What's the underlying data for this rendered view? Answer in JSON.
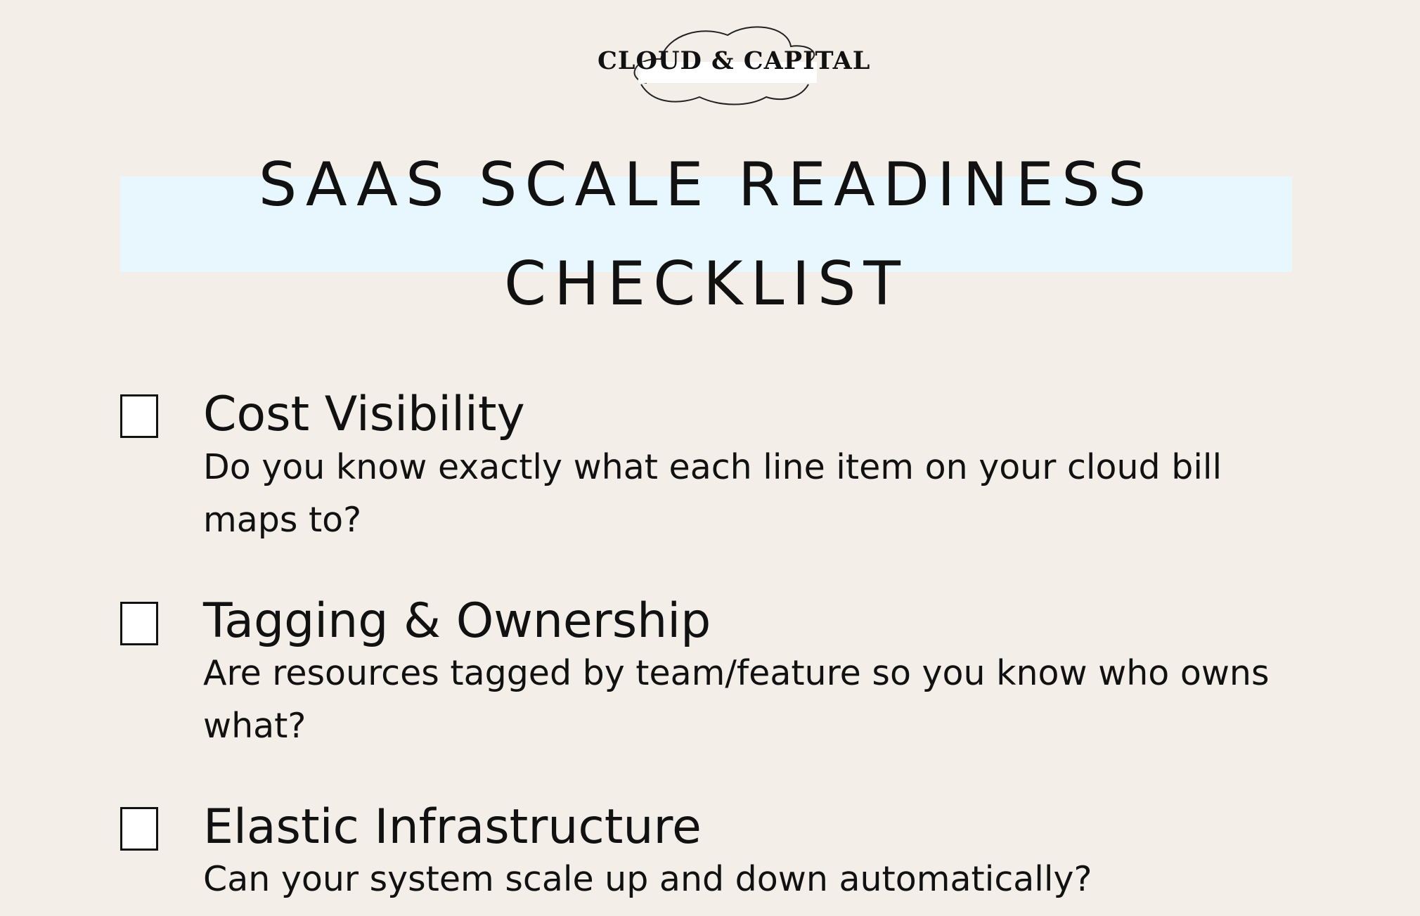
{
  "brand": {
    "logo_text": "CLOUD & CAPITAL"
  },
  "header": {
    "title_line1": "SAAS SCALE READINESS",
    "title_line2": "CHECKLIST"
  },
  "checklist": {
    "items": [
      {
        "title": "Cost Visibility",
        "description": "Do you know exactly what each line item on your cloud bill maps to?",
        "checked": false
      },
      {
        "title": "Tagging & Ownership",
        "description": "Are resources tagged by team/feature so you know who owns what?",
        "checked": false
      },
      {
        "title": "Elastic Infrastructure",
        "description": "Can your system scale up and down automatically?",
        "checked": false
      }
    ]
  },
  "colors": {
    "background": "#f3eee8",
    "title_band": "#e8f7fd",
    "text": "#111111"
  }
}
